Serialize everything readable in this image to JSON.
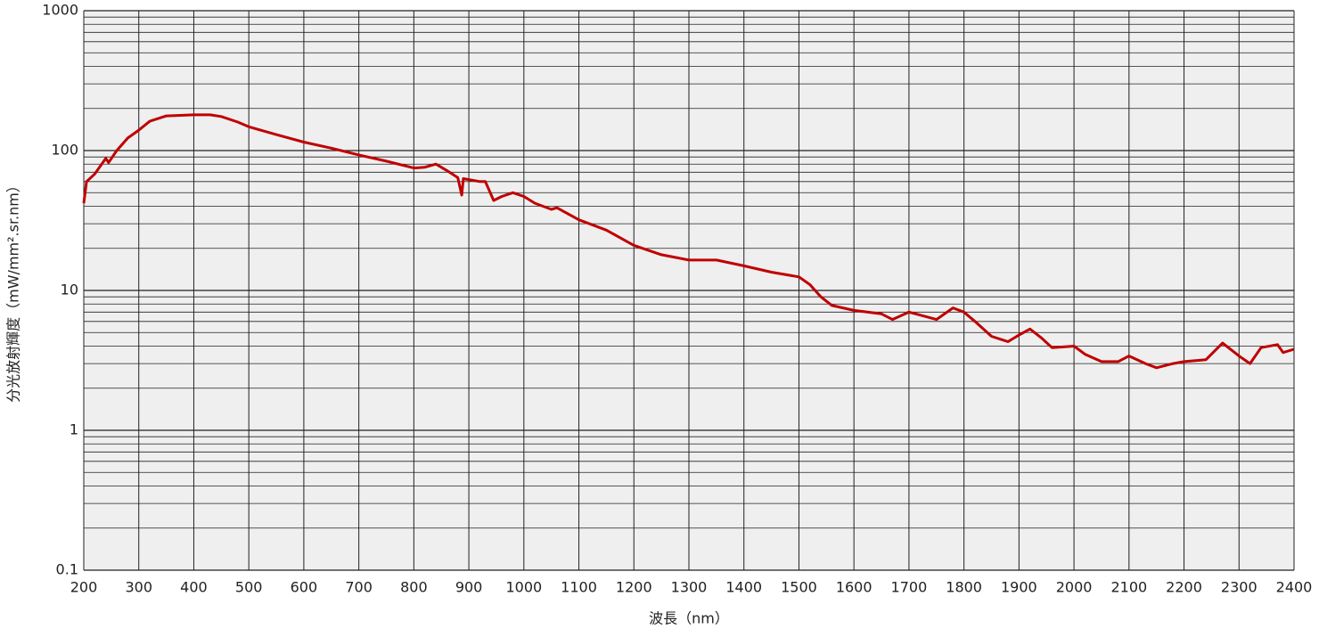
{
  "chart_data": {
    "type": "line",
    "x_label": "波長（nm）",
    "y_label": "分光放射輝度（mW/mm².sr.nm）",
    "x": [
      200,
      205,
      220,
      240,
      245,
      260,
      280,
      300,
      320,
      350,
      400,
      430,
      450,
      480,
      500,
      550,
      600,
      650,
      700,
      750,
      800,
      820,
      840,
      860,
      880,
      887,
      890,
      900,
      920,
      930,
      945,
      960,
      980,
      1000,
      1020,
      1050,
      1060,
      1100,
      1150,
      1200,
      1250,
      1300,
      1350,
      1400,
      1450,
      1500,
      1520,
      1540,
      1560,
      1600,
      1650,
      1670,
      1700,
      1750,
      1780,
      1800,
      1820,
      1850,
      1880,
      1900,
      1920,
      1940,
      1960,
      2000,
      2020,
      2050,
      2080,
      2100,
      2130,
      2150,
      2180,
      2200,
      2240,
      2270,
      2300,
      2320,
      2340,
      2370,
      2380,
      2400
    ],
    "series": [
      {
        "name": "spectral radiance",
        "color": "#c00000",
        "values": [
          42,
          60,
          68,
          88,
          82,
          100,
          123,
          140,
          162,
          177,
          180,
          180,
          175,
          160,
          148,
          130,
          115,
          104,
          93,
          84,
          75,
          76,
          80,
          72,
          64,
          48,
          63,
          62,
          60,
          60,
          44,
          47,
          50,
          47,
          42,
          38,
          39,
          32,
          27,
          21,
          18,
          16.5,
          16.5,
          15,
          13.5,
          12.5,
          11,
          9,
          7.8,
          7.2,
          6.8,
          6.2,
          7,
          6.2,
          7.5,
          7,
          6,
          4.7,
          4.3,
          4.8,
          5.3,
          4.6,
          3.9,
          4,
          3.5,
          3.1,
          3.1,
          3.4,
          3,
          2.8,
          3,
          3.1,
          3.2,
          4.2,
          3.4,
          3,
          3.9,
          4.1,
          3.6,
          3.8
        ]
      }
    ],
    "xlim": [
      200,
      2400
    ],
    "xticks": [
      200,
      300,
      400,
      500,
      600,
      700,
      800,
      900,
      1000,
      1100,
      1200,
      1300,
      1400,
      1500,
      1600,
      1700,
      1800,
      1900,
      2000,
      2100,
      2200,
      2300,
      2400
    ],
    "ylim": [
      0.1,
      1000
    ],
    "yticks": [
      0.1,
      1,
      10,
      100,
      1000
    ],
    "y_scale": "log",
    "grid": true,
    "minor_grid": true
  }
}
